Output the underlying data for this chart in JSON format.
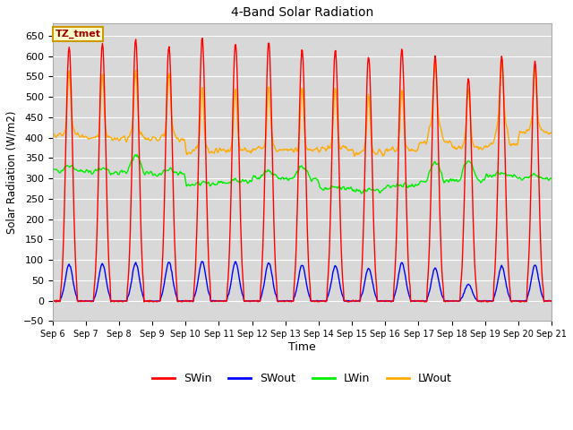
{
  "title": "4-Band Solar Radiation",
  "xlabel": "Time",
  "ylabel": "Solar Radiation (W/m2)",
  "ylim": [
    -50,
    680
  ],
  "yticks": [
    -50,
    0,
    50,
    100,
    150,
    200,
    250,
    300,
    350,
    400,
    450,
    500,
    550,
    600,
    650
  ],
  "x_tick_labels": [
    "Sep 6",
    "Sep 7",
    "Sep 8",
    "Sep 9",
    "Sep 10",
    "Sep 11",
    "Sep 12",
    "Sep 13",
    "Sep 14",
    "Sep 15",
    "Sep 16",
    "Sep 17",
    "Sep 18",
    "Sep 19",
    "Sep 20",
    "Sep 21"
  ],
  "colors": {
    "SWin": "#ff0000",
    "SWout": "#0000ff",
    "LWin": "#00ee00",
    "LWout": "#ffaa00"
  },
  "annotation_text": "TZ_tmet",
  "annotation_bg": "#ffffcc",
  "annotation_border": "#cc9900",
  "fig_bg": "#ffffff",
  "plot_bg": "#d8d8d8",
  "grid_color": "#ffffff",
  "line_width": 1.0,
  "SWin_peaks": [
    622,
    630,
    640,
    628,
    645,
    633,
    635,
    617,
    617,
    600,
    617,
    600,
    546,
    600,
    590
  ],
  "SWout_peaks": [
    88,
    90,
    93,
    95,
    97,
    95,
    93,
    88,
    85,
    80,
    93,
    80,
    40,
    85,
    87
  ],
  "LWin_day_base": [
    330,
    328,
    355,
    320,
    290,
    295,
    320,
    330,
    280,
    275,
    285,
    340,
    345,
    315,
    310
  ],
  "LWout_day_base": [
    415,
    405,
    415,
    415,
    375,
    375,
    380,
    375,
    380,
    370,
    375,
    450,
    390,
    450,
    430
  ],
  "LWin_night_base": [
    320,
    315,
    315,
    310,
    285,
    290,
    300,
    300,
    275,
    270,
    280,
    295,
    295,
    305,
    300
  ],
  "LWout_night_base": [
    405,
    398,
    398,
    398,
    365,
    368,
    372,
    368,
    372,
    362,
    368,
    390,
    375,
    385,
    415
  ]
}
